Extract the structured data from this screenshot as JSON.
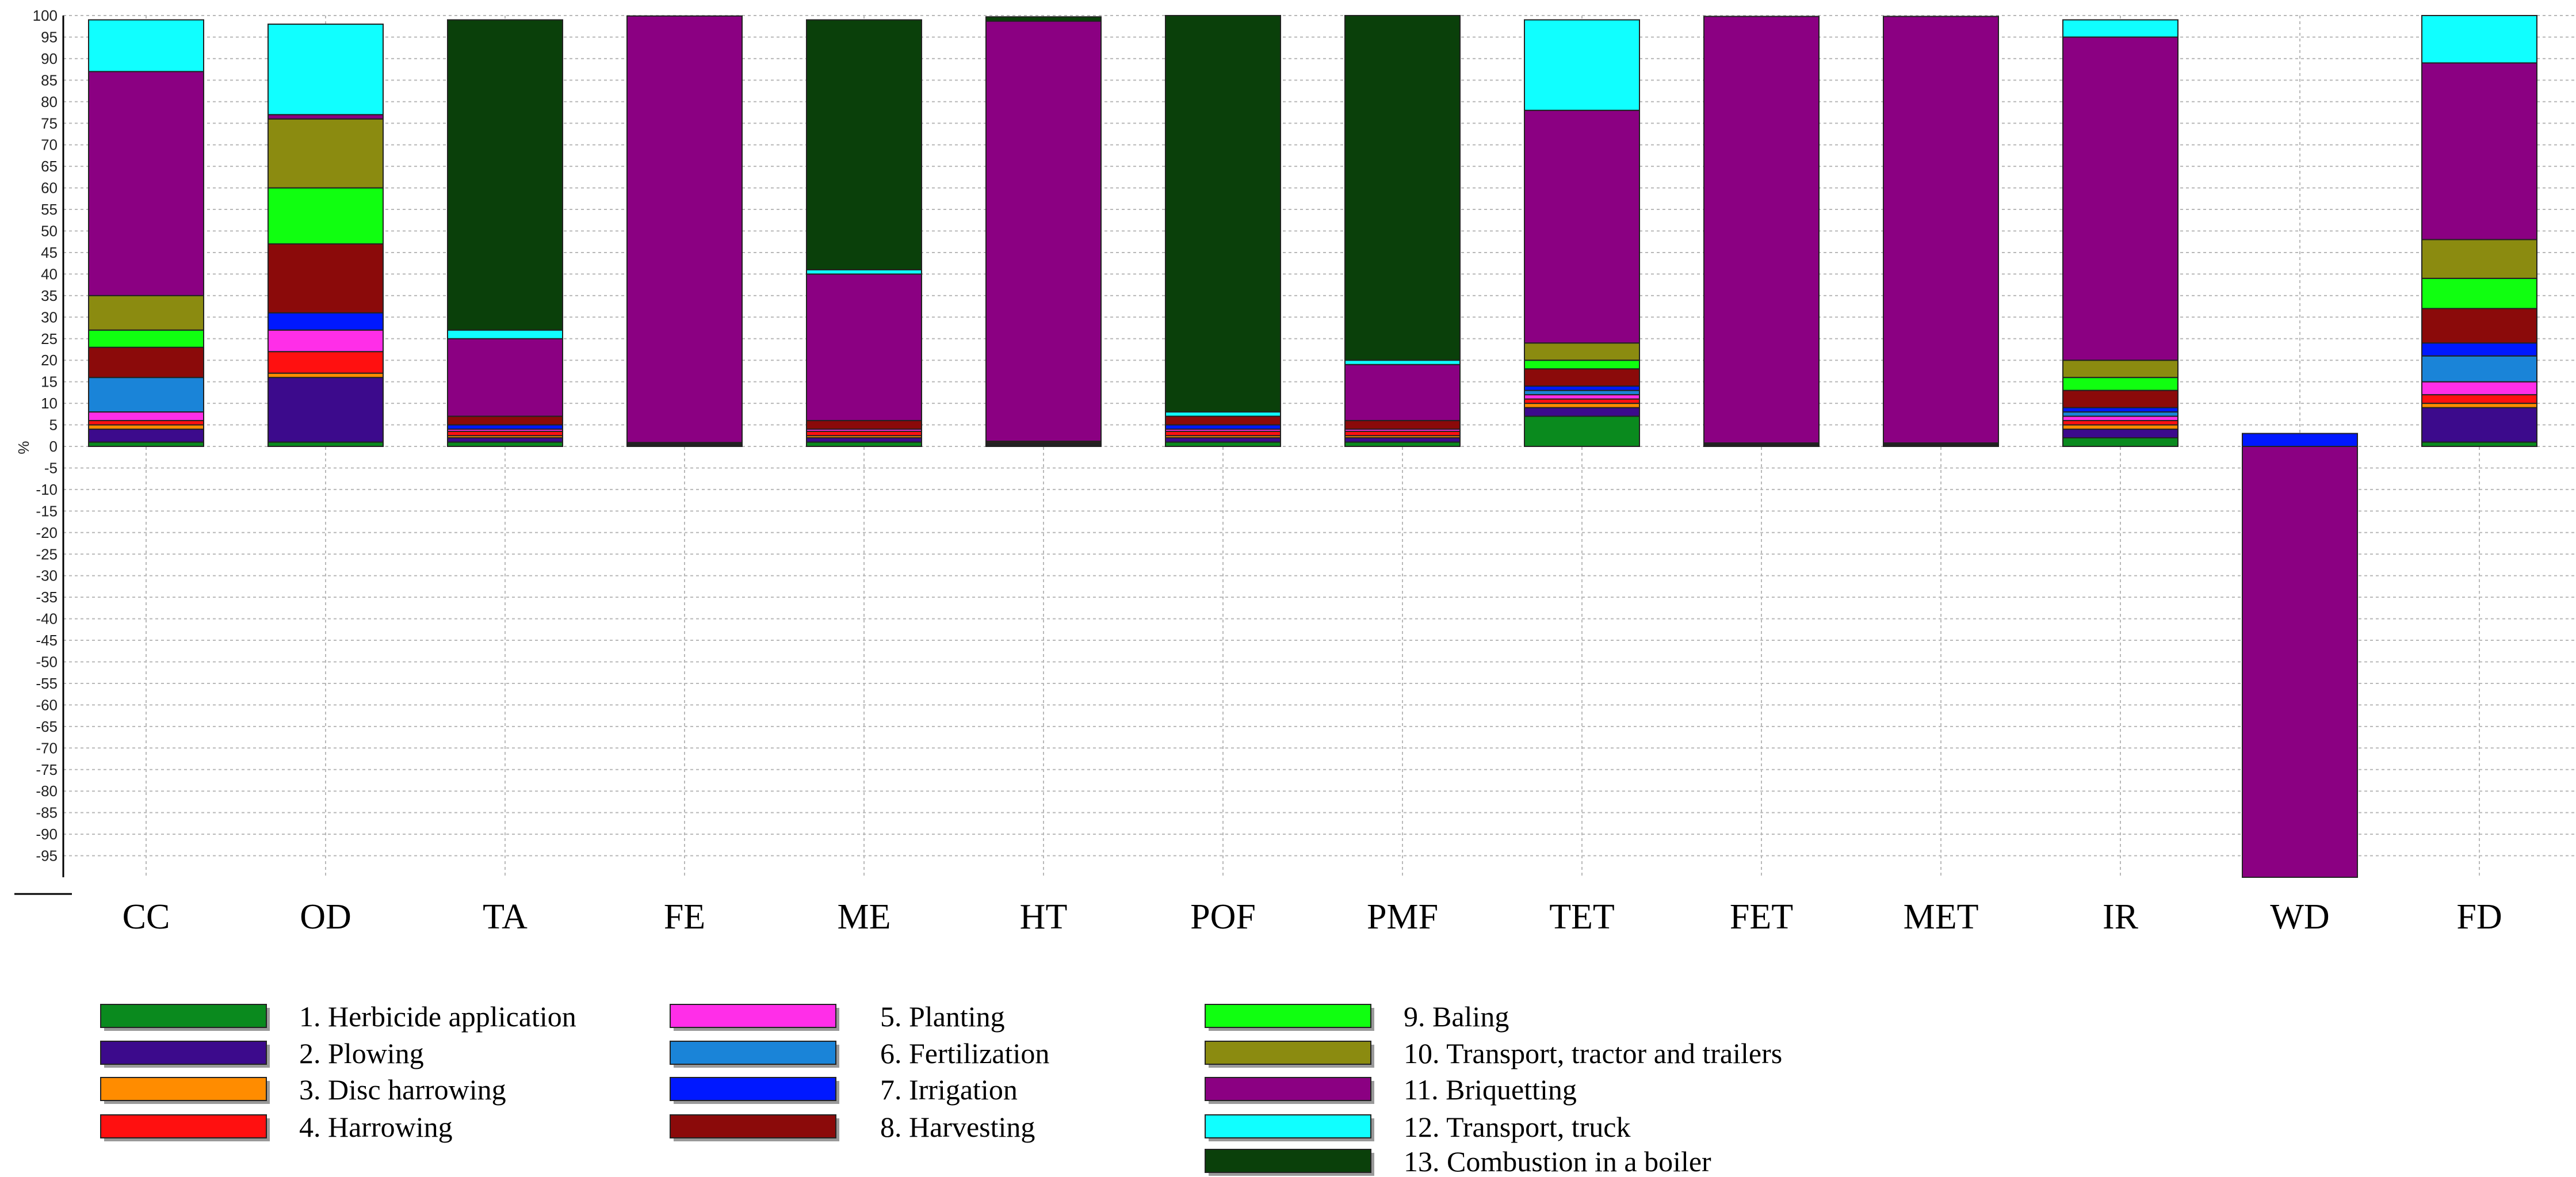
{
  "chart_data": {
    "type": "bar",
    "stacked": true,
    "title": "",
    "xlabel": "",
    "ylabel": "%",
    "ylim": [
      -100,
      100
    ],
    "grid": true,
    "legend_position": "bottom",
    "yticks": [
      100,
      95,
      90,
      85,
      80,
      75,
      70,
      65,
      60,
      55,
      50,
      45,
      40,
      35,
      30,
      25,
      20,
      15,
      10,
      5,
      0,
      -5,
      -10,
      -15,
      -20,
      -25,
      -30,
      -35,
      -40,
      -45,
      -50,
      -55,
      -60,
      -65,
      -70,
      -75,
      -80,
      -85,
      -90,
      -95
    ],
    "categories": [
      "CC",
      "OD",
      "TA",
      "FE",
      "ME",
      "HT",
      "POF",
      "PMF",
      "TET",
      "FET",
      "MET",
      "IR",
      "WD",
      "FD"
    ],
    "series": [
      {
        "name": "1. Herbicide application",
        "color": "#0a8a1e",
        "values": [
          1,
          1,
          1,
          0.2,
          1,
          0.2,
          1,
          1,
          7,
          0.2,
          0.2,
          2,
          0,
          1
        ]
      },
      {
        "name": "2. Plowing",
        "color": "#3c0a8c",
        "values": [
          3,
          15,
          1,
          0.2,
          1,
          0.3,
          1,
          1,
          2,
          0.2,
          0.2,
          2,
          0,
          8
        ]
      },
      {
        "name": "3. Disc harrowing",
        "color": "#ff8c00",
        "values": [
          1,
          1,
          0.5,
          0.1,
          0.5,
          0.1,
          0.5,
          0.5,
          1,
          0.1,
          0.1,
          1,
          0,
          1
        ]
      },
      {
        "name": "4. Harrowing",
        "color": "#ff1010",
        "values": [
          1,
          5,
          1,
          0.1,
          1,
          0.2,
          1,
          1,
          1,
          0.1,
          0.1,
          1,
          0,
          2
        ]
      },
      {
        "name": "5. Planting",
        "color": "#ff2ee8",
        "values": [
          2,
          5,
          0.5,
          0.1,
          0.5,
          0.1,
          0.5,
          0.5,
          1,
          0.1,
          0.1,
          1,
          0,
          3
        ]
      },
      {
        "name": "6. Fertilization",
        "color": "#1a84d8",
        "values": [
          8,
          0,
          0,
          0,
          0,
          0,
          0,
          0,
          1,
          0,
          0,
          1,
          0,
          6
        ]
      },
      {
        "name": "7. Irrigation",
        "color": "#0018ff",
        "values": [
          0,
          4,
          1,
          0,
          0,
          0,
          1,
          0,
          1,
          0,
          0,
          1,
          3,
          3
        ]
      },
      {
        "name": "8. Harvesting",
        "color": "#8b0a0a",
        "values": [
          7,
          16,
          2,
          0.2,
          2,
          0.3,
          2,
          2,
          4,
          0.1,
          0.1,
          4,
          0,
          8
        ]
      },
      {
        "name": "9. Baling",
        "color": "#10ff10",
        "values": [
          4,
          13,
          0,
          0,
          0,
          0,
          0,
          0,
          2,
          0,
          0,
          3,
          0,
          7
        ]
      },
      {
        "name": "10. Transport, tractor and trailers",
        "color": "#8b8b10",
        "values": [
          8,
          16,
          0,
          0,
          0,
          0,
          0,
          0,
          4,
          0,
          0,
          4,
          0,
          9
        ]
      },
      {
        "name": "11. Briquetting",
        "color": "#8b0082",
        "values": [
          52,
          1,
          18,
          99,
          34,
          97.5,
          0,
          13,
          54,
          99,
          99,
          75,
          -100,
          41
        ]
      },
      {
        "name": "12. Transport, truck",
        "color": "#10ffff",
        "values": [
          12,
          21,
          2,
          0,
          1,
          0,
          1,
          1,
          21,
          0,
          0,
          4,
          0,
          11
        ]
      },
      {
        "name": "13. Combustion in a boiler",
        "color": "#0a400a",
        "values": [
          0,
          0,
          72,
          0,
          58,
          1,
          92,
          80,
          0,
          0,
          0,
          0,
          0,
          0
        ]
      }
    ]
  }
}
